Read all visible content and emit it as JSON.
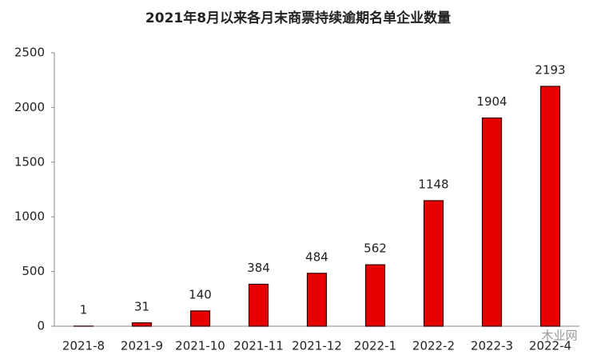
{
  "chart_data": {
    "type": "bar",
    "title": "2021年8月以来各月末商票持续逾期名单企业数量",
    "categories": [
      "2021-8",
      "2021-9",
      "2021-10",
      "2021-11",
      "2021-12",
      "2022-1",
      "2022-2",
      "2022-3",
      "2022-4"
    ],
    "values": [
      1,
      31,
      140,
      384,
      484,
      562,
      1148,
      1904,
      2193
    ],
    "color": "#e60000",
    "ylim": [
      0,
      2500
    ],
    "yticks": [
      0,
      500,
      1000,
      1500,
      2000,
      2500
    ],
    "grid": false,
    "watermark": "木业网"
  }
}
